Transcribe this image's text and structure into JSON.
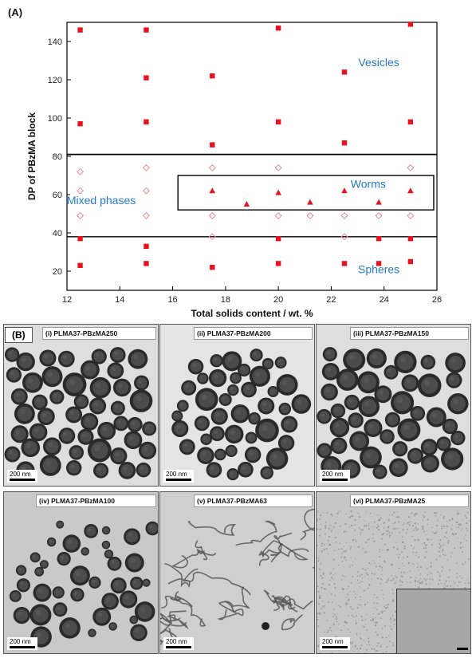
{
  "panel_a_label": "(A)",
  "panel_b_label": "(B)",
  "chart_data": {
    "type": "scatter",
    "xlabel": "Total solids content / wt. %",
    "ylabel": "DP of PBzMA block",
    "xlim": [
      12,
      26
    ],
    "ylim": [
      10,
      150
    ],
    "xticks": [
      12,
      14,
      16,
      18,
      20,
      22,
      24,
      26
    ],
    "yticks": [
      20,
      40,
      60,
      80,
      100,
      120,
      140
    ],
    "colors": {
      "marker": "#e8131f",
      "label": "#2479c8",
      "frame": "#000000"
    },
    "phase_boundaries": [
      81,
      38
    ],
    "worm_box": {
      "x": [
        16.2,
        26
      ],
      "y": [
        52,
        70
      ]
    },
    "series": [
      {
        "phase": "vesicles",
        "marker": "filled-square",
        "points": [
          [
            12.5,
            146
          ],
          [
            12.5,
            97
          ],
          [
            15,
            146
          ],
          [
            15,
            121
          ],
          [
            15,
            98
          ],
          [
            17.5,
            122
          ],
          [
            17.5,
            86
          ],
          [
            20,
            147
          ],
          [
            20,
            98
          ],
          [
            22.5,
            124
          ],
          [
            22.5,
            87
          ],
          [
            25,
            149
          ],
          [
            25,
            98
          ]
        ]
      },
      {
        "phase": "mixed",
        "marker": "open-diamond",
        "points": [
          [
            12.5,
            72
          ],
          [
            12.5,
            62
          ],
          [
            12.5,
            49
          ],
          [
            15,
            74
          ],
          [
            15,
            62
          ],
          [
            15,
            49
          ],
          [
            17.5,
            74
          ],
          [
            17.5,
            49
          ],
          [
            17.5,
            38
          ],
          [
            20,
            74
          ],
          [
            20,
            49
          ],
          [
            21.2,
            49
          ],
          [
            22.5,
            49
          ],
          [
            22.5,
            38
          ],
          [
            23.8,
            49
          ],
          [
            25,
            74
          ],
          [
            25,
            49
          ]
        ]
      },
      {
        "phase": "worms",
        "marker": "filled-triangle",
        "points": [
          [
            17.5,
            62
          ],
          [
            18.8,
            55
          ],
          [
            20,
            61
          ],
          [
            21.2,
            56
          ],
          [
            22.5,
            62
          ],
          [
            23.8,
            56
          ],
          [
            25,
            62
          ]
        ]
      },
      {
        "phase": "spheres",
        "marker": "filled-square",
        "points": [
          [
            12.5,
            37
          ],
          [
            12.5,
            23
          ],
          [
            15,
            33
          ],
          [
            15,
            24
          ],
          [
            17.5,
            22
          ],
          [
            20,
            37
          ],
          [
            20,
            24
          ],
          [
            22.5,
            24
          ],
          [
            23.8,
            37
          ],
          [
            23.8,
            24
          ],
          [
            25,
            37
          ],
          [
            25,
            25
          ]
        ]
      }
    ],
    "annotations": [
      {
        "text": "Vesicles",
        "x": 23.8,
        "y": 127
      },
      {
        "text": "Worms",
        "x": 23.4,
        "y": 63.5
      },
      {
        "text": "Mixed phases",
        "x": 13.3,
        "y": 55
      },
      {
        "text": "Spheres",
        "x": 23.8,
        "y": 19
      }
    ]
  },
  "micrographs": [
    {
      "label": "(i) PLMA37-PBzMA250",
      "scale": "200 nm",
      "morph": "vesicles-dense"
    },
    {
      "label": "(ii) PLMA37-PBzMA200",
      "scale": "200 nm",
      "morph": "vesicles-cluster"
    },
    {
      "label": "(iii) PLMA37-PBzMA150",
      "scale": "200 nm",
      "morph": "vesicles-dense"
    },
    {
      "label": "(iv) PLMA37-PBzMA100",
      "scale": "200 nm",
      "morph": "vesicles-sparse"
    },
    {
      "label": "(v) PLMA37-PBzMA63",
      "scale": "200 nm",
      "morph": "worms"
    },
    {
      "label": "(vi) PLMA37-PBzMA25",
      "scale": "200 nm",
      "morph": "spheres"
    }
  ]
}
